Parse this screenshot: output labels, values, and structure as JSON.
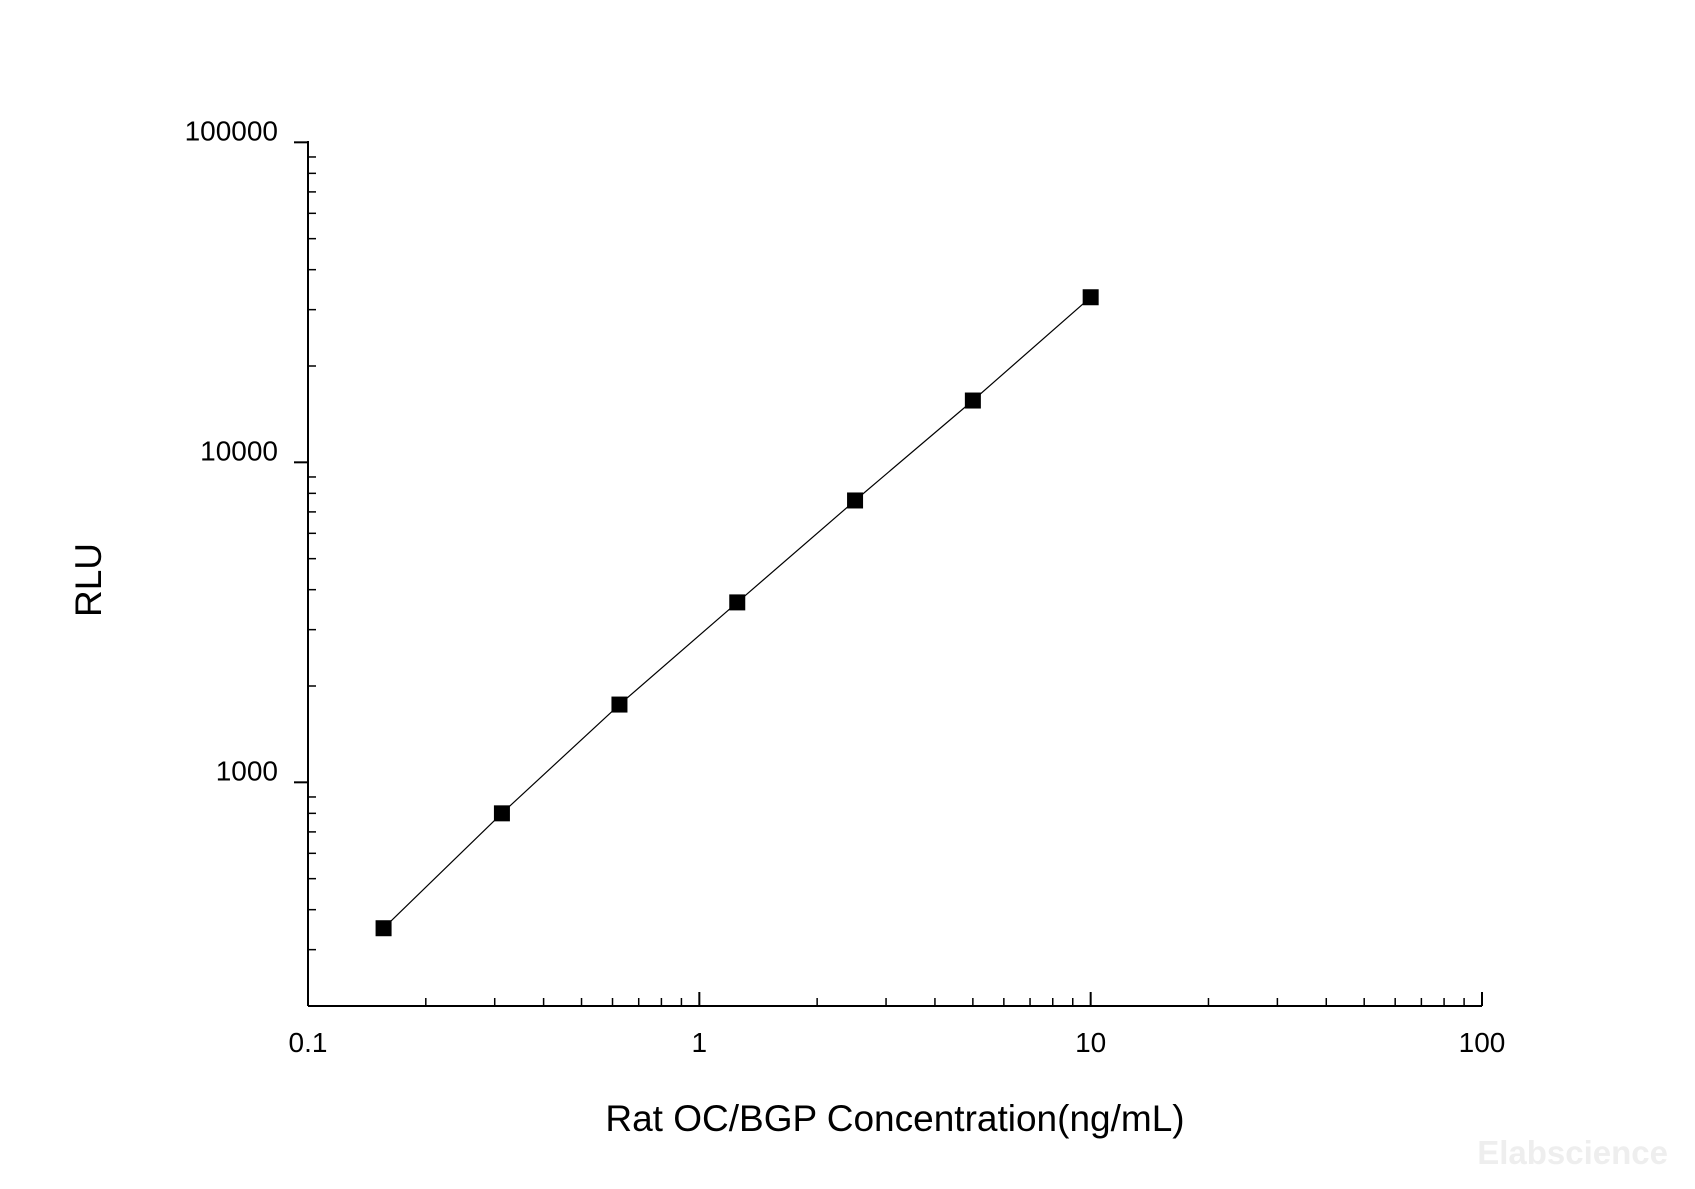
{
  "chart_data": {
    "type": "scatter",
    "xlabel": "Rat OC/BGP Concentration(ng/mL)",
    "ylabel": "RLU",
    "x_scale": "log",
    "y_scale": "log",
    "xlim": [
      0.1,
      100
    ],
    "ylim": [
      200,
      100000
    ],
    "x_ticks": [
      "0.1",
      "1",
      "10",
      "100"
    ],
    "y_ticks": [
      "1000",
      "10000",
      "100000"
    ],
    "grid": false,
    "legend": "none",
    "fit_line": true,
    "marker": "square",
    "color": "#000000",
    "series": [
      {
        "x": [
          0.156,
          0.313,
          0.625,
          1.25,
          2.5,
          5,
          10
        ],
        "y": [
          350,
          800,
          1750,
          3650,
          7600,
          15600,
          32800
        ]
      }
    ]
  },
  "watermark": "Elabscience"
}
